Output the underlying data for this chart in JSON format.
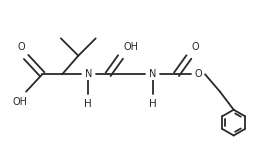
{
  "bg_color": "#ffffff",
  "line_color": "#2a2a2a",
  "lw": 1.3,
  "fs": 7.0,
  "figsize": [
    2.61,
    1.61
  ],
  "dpi": 100,
  "xlim": [
    0,
    10.5
  ],
  "ylim": [
    0,
    6.5
  ]
}
